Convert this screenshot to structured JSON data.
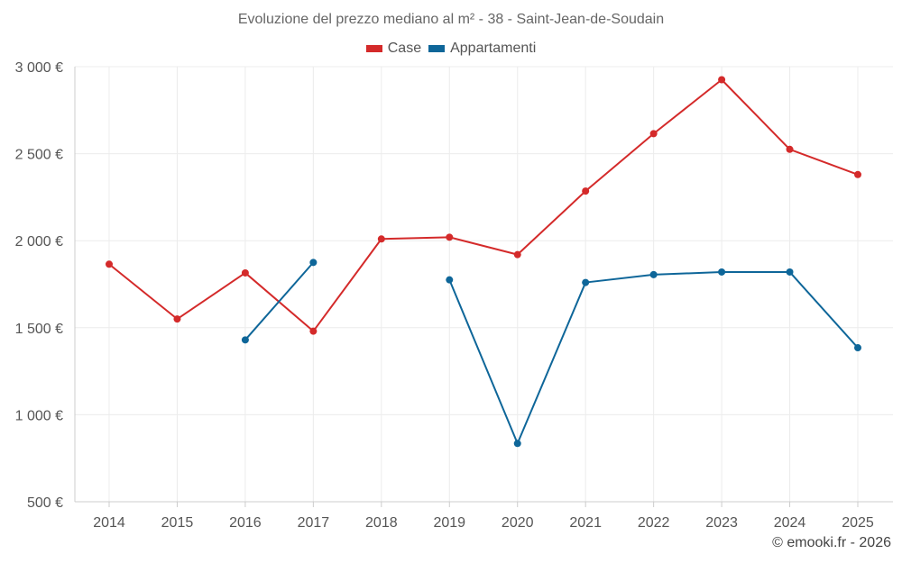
{
  "chart_data": {
    "type": "line",
    "title": "Evoluzione del prezzo mediano al m² - 38 - Saint-Jean-de-Soudain",
    "xlabel": "",
    "ylabel": "",
    "categories": [
      "2014",
      "2015",
      "2016",
      "2017",
      "2018",
      "2019",
      "2020",
      "2021",
      "2022",
      "2023",
      "2024",
      "2025"
    ],
    "ylim": [
      500,
      3000
    ],
    "yticks": [
      500,
      1000,
      1500,
      2000,
      2500,
      3000
    ],
    "ytick_labels": [
      "500 €",
      "1 000 €",
      "1 500 €",
      "2 000 €",
      "2 500 €",
      "3 000 €"
    ],
    "grid": true,
    "legend_position": "top-center",
    "series": [
      {
        "name": "Case",
        "color": "#d42a2a",
        "values": [
          1865,
          1550,
          1815,
          1480,
          2010,
          2020,
          1920,
          2285,
          2615,
          2925,
          2525,
          2380
        ]
      },
      {
        "name": "Appartamenti",
        "color": "#0e6699",
        "values": [
          null,
          null,
          1430,
          1875,
          null,
          1775,
          835,
          1760,
          1805,
          1820,
          1820,
          1385
        ]
      }
    ]
  },
  "footer": {
    "copyright": "© emooki.fr - 2026"
  }
}
